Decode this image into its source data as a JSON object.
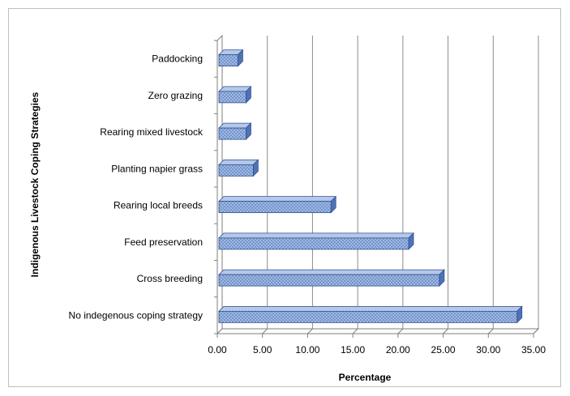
{
  "chart_data": {
    "type": "bar",
    "orientation": "horizontal",
    "title": "",
    "xlabel": "Percentage",
    "ylabel": "Indigenous Livestock Coping Strategies",
    "categories": [
      "No indegenous coping strategy",
      "Cross breeding",
      "Feed preservation",
      "Rearing local breeds",
      "Planting napier grass",
      "Rearing mixed livestock",
      "Zero grazing",
      "Paddocking"
    ],
    "values": [
      33.0,
      24.4,
      21.0,
      12.4,
      3.8,
      3.0,
      3.0,
      2.1
    ],
    "xlim": [
      0,
      35
    ],
    "x_ticks": [
      "0.00",
      "5.00",
      "10.00",
      "15.00",
      "20.00",
      "25.00",
      "30.00",
      "35.00"
    ],
    "grid": "vertical",
    "style": "3d",
    "bar_color": "#7f9fd3",
    "bar_border": "#2f4f8f",
    "grid_color": "#8c8c8c",
    "legend": "none"
  }
}
